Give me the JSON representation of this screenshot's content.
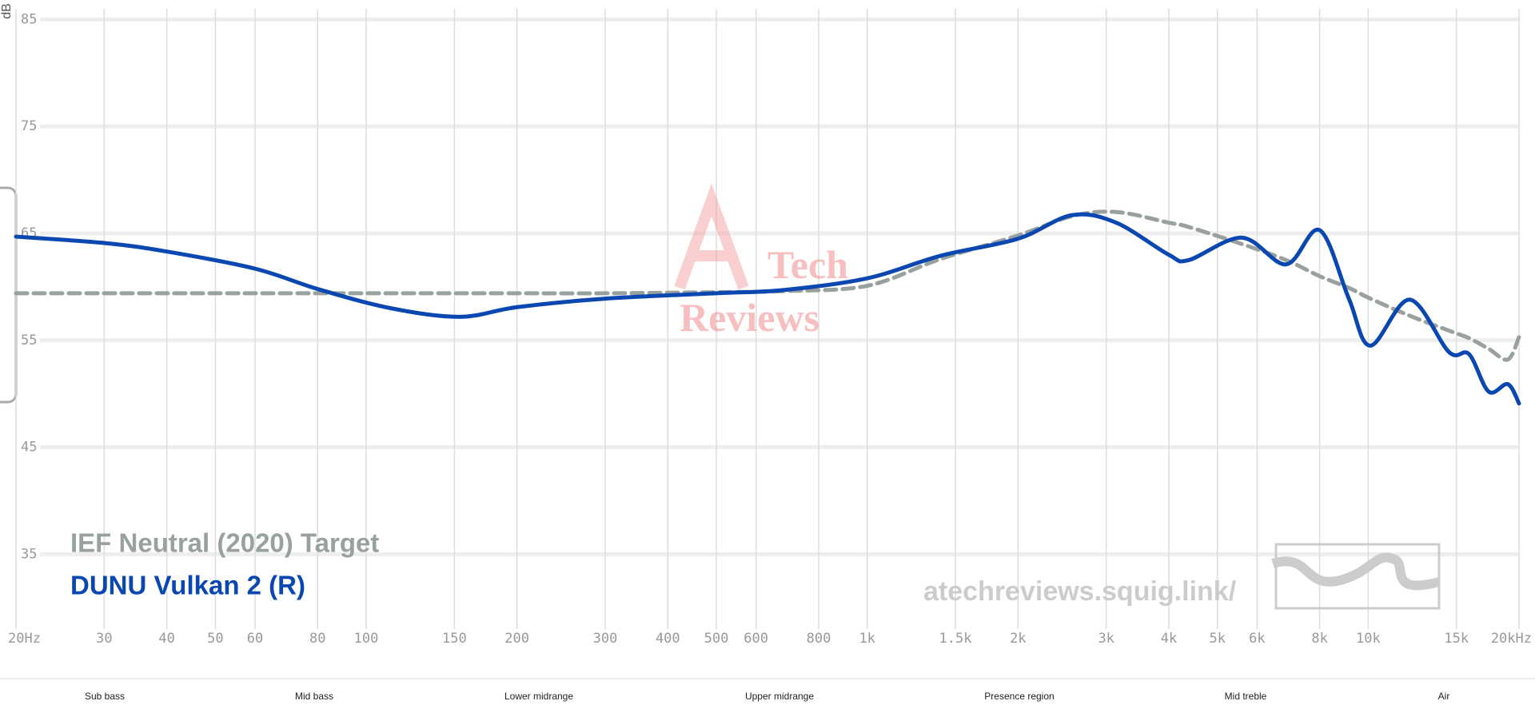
{
  "chart_data": {
    "type": "line",
    "y_label": "dB",
    "xscale": "log",
    "grid": true,
    "xlim": [
      20,
      20000
    ],
    "ylim": [
      28,
      86
    ],
    "xticks": [
      {
        "value": 20,
        "label": "20Hz"
      },
      30,
      40,
      50,
      60,
      80,
      100,
      150,
      200,
      300,
      400,
      500,
      600,
      800,
      {
        "value": 1000,
        "label": "1k"
      },
      {
        "value": 1500,
        "label": "1.5k"
      },
      {
        "value": 2000,
        "label": "2k"
      },
      {
        "value": 3000,
        "label": "3k"
      },
      {
        "value": 4000,
        "label": "4k"
      },
      {
        "value": 5000,
        "label": "5k"
      },
      {
        "value": 6000,
        "label": "6k"
      },
      {
        "value": 8000,
        "label": "8k"
      },
      {
        "value": 10000,
        "label": "10k"
      },
      {
        "value": 15000,
        "label": "15k"
      },
      {
        "value": 20000,
        "label": "20kHz"
      }
    ],
    "yticks": [
      35,
      45,
      55,
      65,
      75,
      85
    ],
    "x": [
      20,
      30,
      40,
      60,
      80,
      112,
      154,
      200,
      300,
      500,
      680,
      1000,
      1400,
      2000,
      2560,
      3140,
      4000,
      4380,
      5600,
      6860,
      8000,
      9150,
      10100,
      12100,
      14500,
      15900,
      17400,
      19000,
      20000
    ],
    "series": [
      {
        "name": "IEF Neutral (2020) Target",
        "color": "#98a19e",
        "dashed": true,
        "values": [
          59.4,
          59.4,
          59.4,
          59.4,
          59.4,
          59.4,
          59.4,
          59.4,
          59.4,
          59.5,
          59.6,
          60.1,
          62.6,
          64.8,
          66.6,
          67.0,
          66.0,
          65.6,
          64.0,
          62.5,
          61.0,
          59.9,
          58.9,
          57.3,
          55.9,
          55.2,
          54.2,
          53.2,
          55.3
        ]
      },
      {
        "name": "DUNU Vulkan 2 (R)",
        "color": "#0a47b0",
        "dashed": false,
        "values": [
          64.7,
          64.1,
          63.3,
          61.7,
          59.8,
          58.0,
          57.2,
          58.1,
          58.9,
          59.4,
          59.7,
          60.8,
          62.9,
          64.5,
          66.7,
          66.0,
          63.0,
          62.5,
          64.6,
          62.1,
          65.3,
          58.9,
          54.5,
          58.8,
          53.9,
          53.7,
          50.2,
          50.9,
          49.1
        ]
      }
    ],
    "regions": [
      "Sub bass",
      "Mid bass",
      "Lower midrange",
      "Upper midrange",
      "Presence region",
      "Mid treble",
      "Air"
    ],
    "watermark": {
      "logo_line1": "Tech",
      "logo_line2": "Reviews",
      "url": "atechreviews.squig.link/"
    }
  }
}
